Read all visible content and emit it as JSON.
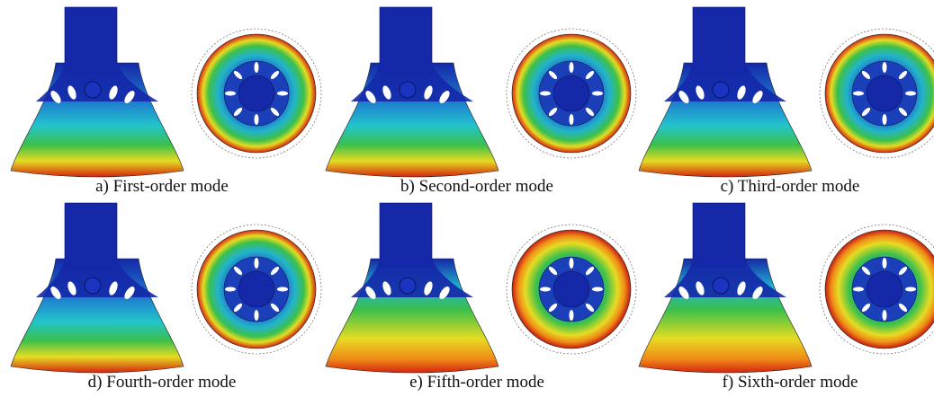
{
  "panels": [
    {
      "caption": "a) First-order mode"
    },
    {
      "caption": "b) Second-order mode"
    },
    {
      "caption": "c) Third-order mode"
    },
    {
      "caption": "d) Fourth-order mode"
    },
    {
      "caption": "e) Fifth-order mode"
    },
    {
      "caption": "f) Sixth-order mode"
    }
  ]
}
